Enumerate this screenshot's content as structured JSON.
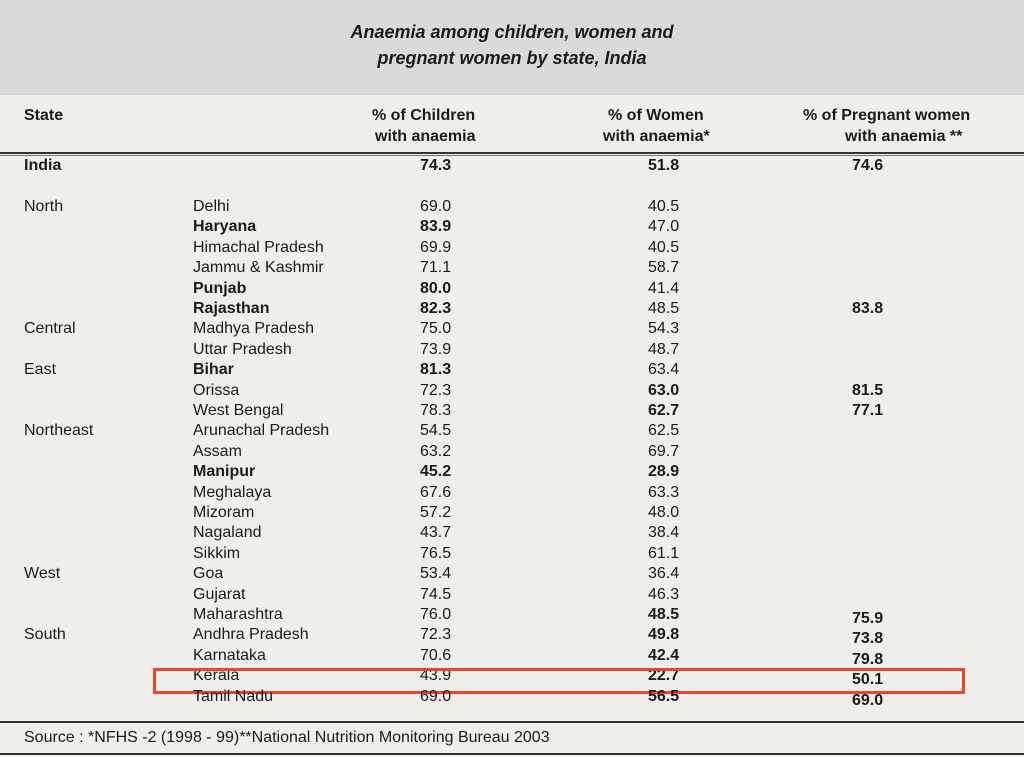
{
  "title": {
    "line1": "Anaemia among children, women and",
    "line2": "pregnant women by state, India"
  },
  "headers": {
    "state": "State",
    "children_1": "% of Children",
    "children_2": "with anaemia",
    "women_1": "% of Women",
    "women_2": "with anaemia*",
    "pregnant_1": "% of Pregnant women",
    "pregnant_2": "with anaemia **"
  },
  "india": {
    "label": "India",
    "children": "74.3",
    "women": "51.8",
    "pregnant": "74.6"
  },
  "rows": [
    {
      "region": "North",
      "state": "Delhi",
      "children": "69.0",
      "women": "40.5",
      "pregnant": "",
      "bold": [
        false,
        false,
        false,
        false
      ]
    },
    {
      "region": "",
      "state": "Haryana",
      "children": "83.9",
      "women": "47.0",
      "pregnant": "",
      "bold": [
        true,
        true,
        false,
        false
      ]
    },
    {
      "region": "",
      "state": "Himachal Pradesh",
      "children": "69.9",
      "women": "40.5",
      "pregnant": "",
      "bold": [
        false,
        false,
        false,
        false
      ]
    },
    {
      "region": "",
      "state": "Jammu & Kashmir",
      "children": "71.1",
      "women": "58.7",
      "pregnant": "",
      "bold": [
        false,
        false,
        false,
        false
      ]
    },
    {
      "region": "",
      "state": "Punjab",
      "children": "80.0",
      "women": "41.4",
      "pregnant": "",
      "bold": [
        true,
        true,
        false,
        false
      ]
    },
    {
      "region": "",
      "state": "Rajasthan",
      "children": "82.3",
      "women": "48.5",
      "pregnant": "83.8",
      "bold": [
        true,
        true,
        false,
        true
      ]
    },
    {
      "region": "Central",
      "state": "Madhya Pradesh",
      "children": "75.0",
      "women": "54.3",
      "pregnant": "",
      "bold": [
        false,
        false,
        false,
        false
      ]
    },
    {
      "region": "",
      "state": "Uttar Pradesh",
      "children": "73.9",
      "women": "48.7",
      "pregnant": "",
      "bold": [
        false,
        false,
        false,
        false
      ]
    },
    {
      "region": "East",
      "state": "Bihar",
      "children": "81.3",
      "women": "63.4",
      "pregnant": "",
      "bold": [
        true,
        true,
        false,
        false
      ]
    },
    {
      "region": "",
      "state": "Orissa",
      "children": "72.3",
      "women": "63.0",
      "pregnant": "81.5",
      "bold": [
        false,
        false,
        true,
        true
      ]
    },
    {
      "region": "",
      "state": "West Bengal",
      "children": "78.3",
      "women": "62.7",
      "pregnant": "77.1",
      "bold": [
        false,
        false,
        true,
        true
      ]
    },
    {
      "region": "Northeast",
      "state": "Arunachal Pradesh",
      "children": "54.5",
      "women": "62.5",
      "pregnant": "",
      "bold": [
        false,
        false,
        false,
        false
      ]
    },
    {
      "region": "",
      "state": "Assam",
      "children": "63.2",
      "women": "69.7",
      "pregnant": "",
      "bold": [
        false,
        false,
        false,
        false
      ]
    },
    {
      "region": "",
      "state": "Manipur",
      "children": "45.2",
      "women": "28.9",
      "pregnant": "",
      "bold": [
        true,
        true,
        true,
        false
      ]
    },
    {
      "region": "",
      "state": "Meghalaya",
      "children": "67.6",
      "women": "63.3",
      "pregnant": "",
      "bold": [
        false,
        false,
        false,
        false
      ]
    },
    {
      "region": "",
      "state": "Mizoram",
      "children": "57.2",
      "women": "48.0",
      "pregnant": "",
      "bold": [
        false,
        false,
        false,
        false
      ]
    },
    {
      "region": "",
      "state": "Nagaland",
      "children": "43.7",
      "women": "38.4",
      "pregnant": "",
      "bold": [
        false,
        false,
        false,
        false
      ]
    },
    {
      "region": "",
      "state": "Sikkim",
      "children": "76.5",
      "women": "61.1",
      "pregnant": "",
      "bold": [
        false,
        false,
        false,
        false
      ]
    },
    {
      "region": "West",
      "state": "Goa",
      "children": "53.4",
      "women": "36.4",
      "pregnant": "",
      "bold": [
        false,
        false,
        false,
        false
      ]
    },
    {
      "region": "",
      "state": "Gujarat",
      "children": "74.5",
      "women": "46.3",
      "pregnant": "",
      "bold": [
        false,
        false,
        false,
        false
      ]
    },
    {
      "region": "",
      "state": "Maharashtra",
      "children": "76.0",
      "women": "48.5",
      "pregnant": "75.9",
      "bold": [
        false,
        false,
        true,
        true
      ]
    },
    {
      "region": "South",
      "state": "Andhra Pradesh",
      "children": "72.3",
      "women": "49.8",
      "pregnant": "73.8",
      "bold": [
        false,
        false,
        true,
        true
      ]
    },
    {
      "region": "",
      "state": "Karnataka",
      "children": "70.6",
      "women": "42.4",
      "pregnant": "79.8",
      "bold": [
        false,
        false,
        true,
        true
      ]
    },
    {
      "region": "",
      "state": "Kerala",
      "children": "43.9",
      "women": "22.7",
      "pregnant": "50.1",
      "bold": [
        false,
        false,
        true,
        true
      ],
      "highlighted": true
    },
    {
      "region": "",
      "state": "Tamil Nadu",
      "children": "69.0",
      "women": "56.5",
      "pregnant": "69.0",
      "bold": [
        false,
        false,
        true,
        true
      ]
    }
  ],
  "source": "Source : *NFHS -2 (1998 - 99)**National Nutrition Monitoring Bureau 2003",
  "colors": {
    "highlight": "#e8452c",
    "title_band": "#dcdad8",
    "background": "#f0efeb"
  }
}
